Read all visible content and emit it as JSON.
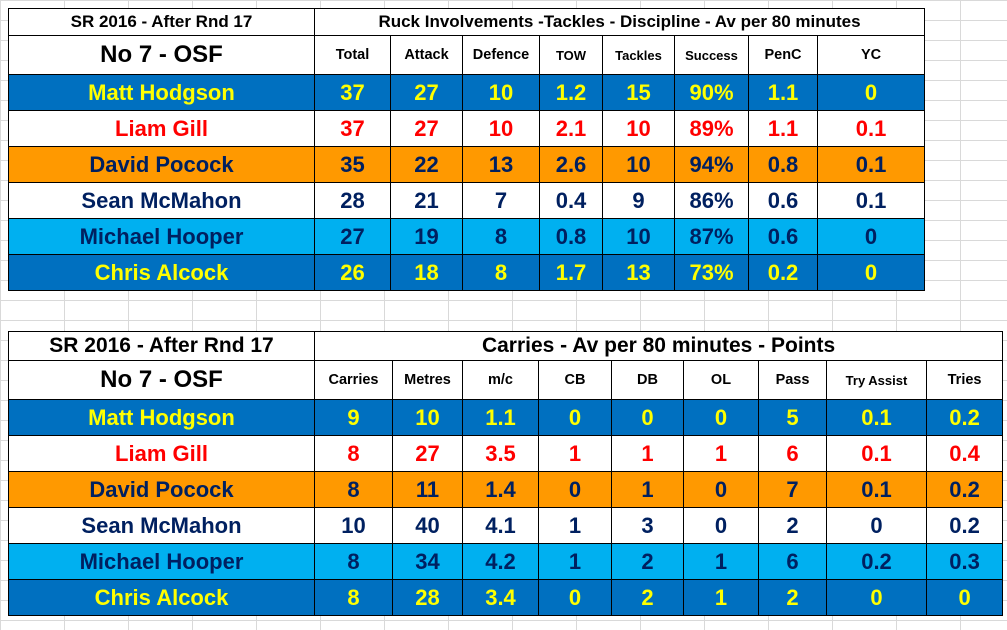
{
  "table1": {
    "title": "SR 2016 - After Rnd 17",
    "section_title": "Ruck Involvements -Tackles - Discipline - Av per 80 minutes",
    "position": "No 7 - OSF",
    "columns": [
      "Total",
      "Attack",
      "Defence",
      "TOW",
      "Tackles",
      "Success",
      "PenC",
      "YC"
    ],
    "rows": [
      {
        "name": "Matt Hodgson",
        "bg": "#0070c0",
        "color": "#ffff00",
        "cells": [
          "37",
          "27",
          "10",
          "1.2",
          "15",
          "90%",
          "1.1",
          "0"
        ]
      },
      {
        "name": "Liam Gill",
        "bg": "#ffffff",
        "color": "#ff0000",
        "cells": [
          "37",
          "27",
          "10",
          "2.1",
          "10",
          "89%",
          "1.1",
          "0.1"
        ]
      },
      {
        "name": "David Pocock",
        "bg": "#ff9900",
        "color": "#002060",
        "cells": [
          "35",
          "22",
          "13",
          "2.6",
          "10",
          "94%",
          "0.8",
          "0.1"
        ]
      },
      {
        "name": "Sean McMahon",
        "bg": "#ffffff",
        "color": "#002060",
        "cells": [
          "28",
          "21",
          "7",
          "0.4",
          "9",
          "86%",
          "0.6",
          "0.1"
        ]
      },
      {
        "name": "Michael Hooper",
        "bg": "#00b0f0",
        "color": "#002060",
        "cells": [
          "27",
          "19",
          "8",
          "0.8",
          "10",
          "87%",
          "0.6",
          "0"
        ]
      },
      {
        "name": "Chris Alcock",
        "bg": "#0070c0",
        "color": "#ffff00",
        "cells": [
          "26",
          "18",
          "8",
          "1.7",
          "13",
          "73%",
          "0.2",
          "0"
        ]
      }
    ]
  },
  "table2": {
    "title": "SR 2016 - After Rnd 17",
    "section_title": "Carries - Av per 80 minutes - Points",
    "position": "No 7 - OSF",
    "columns": [
      "Carries",
      "Metres",
      "m/c",
      "CB",
      "DB",
      "OL",
      "Pass",
      "Try Assist",
      "Tries"
    ],
    "rows": [
      {
        "name": "Matt Hodgson",
        "bg": "#0070c0",
        "color": "#ffff00",
        "cells": [
          "9",
          "10",
          "1.1",
          "0",
          "0",
          "0",
          "5",
          "0.1",
          "0.2"
        ]
      },
      {
        "name": "Liam Gill",
        "bg": "#ffffff",
        "color": "#ff0000",
        "cells": [
          "8",
          "27",
          "3.5",
          "1",
          "1",
          "1",
          "6",
          "0.1",
          "0.4"
        ]
      },
      {
        "name": "David Pocock",
        "bg": "#ff9900",
        "color": "#002060",
        "cells": [
          "8",
          "11",
          "1.4",
          "0",
          "1",
          "0",
          "7",
          "0.1",
          "0.2"
        ]
      },
      {
        "name": "Sean McMahon",
        "bg": "#ffffff",
        "color": "#002060",
        "cells": [
          "10",
          "40",
          "4.1",
          "1",
          "3",
          "0",
          "2",
          "0",
          "0.2"
        ]
      },
      {
        "name": "Michael Hooper",
        "bg": "#00b0f0",
        "color": "#002060",
        "cells": [
          "8",
          "34",
          "4.2",
          "1",
          "2",
          "1",
          "6",
          "0.2",
          "0.3"
        ]
      },
      {
        "name": "Chris Alcock",
        "bg": "#0070c0",
        "color": "#ffff00",
        "cells": [
          "8",
          "28",
          "3.4",
          "0",
          "2",
          "1",
          "2",
          "0",
          "0"
        ]
      }
    ]
  }
}
